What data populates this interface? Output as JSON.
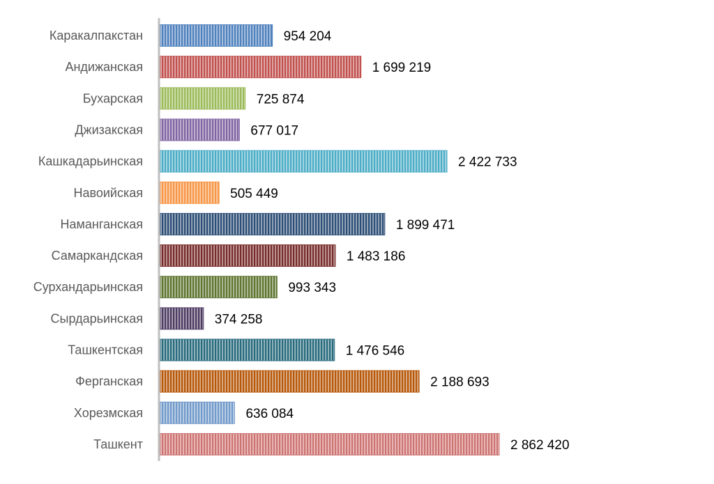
{
  "chart_data": {
    "type": "bar",
    "orientation": "horizontal",
    "title": "",
    "xlabel": "",
    "ylabel": "",
    "xlim": [
      0,
      2862420
    ],
    "categories": [
      "Каракалпакстан",
      "Андижанская",
      "Бухарская",
      "Джизакская",
      "Кашкадарьинская",
      "Навоийская",
      "Наманганская",
      "Самаркандская",
      "Сурхандарьинская",
      "Сырдарьинская",
      "Ташкентская",
      "Ферганская",
      "Хорезмская",
      "Ташкент"
    ],
    "values": [
      954204,
      1699219,
      725874,
      677017,
      2422733,
      505449,
      1899471,
      1483186,
      993343,
      374258,
      1476546,
      2188693,
      636084,
      2862420
    ],
    "value_labels": [
      "954 204",
      "1 699 219",
      "725 874",
      "677 017",
      "2 422 733",
      "505 449",
      "1 899 471",
      "1 483 186",
      "993 343",
      "374 258",
      "1 476 546",
      "2 188 693",
      "636 084",
      "2 862 420"
    ],
    "colors": [
      "#4f81bd",
      "#c0504d",
      "#9bbb59",
      "#8064a2",
      "#4bacc6",
      "#f79646",
      "#2c4d75",
      "#772c2a",
      "#5f7530",
      "#4d3b62",
      "#276a7c",
      "#b65708",
      "#729aca",
      "#cd7371"
    ],
    "axis_color": "#bfbfbf",
    "legend": "none",
    "grid": false
  }
}
